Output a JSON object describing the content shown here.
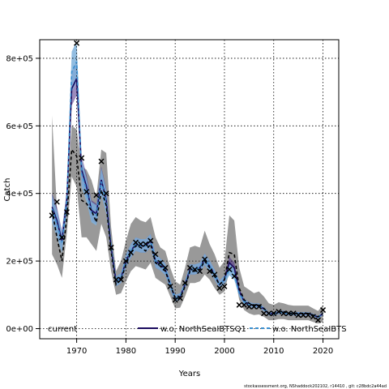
{
  "chart_data": {
    "type": "line",
    "xlabel": "Years",
    "ylabel": "Catch",
    "xlim": [
      1962.5,
      2023.2
    ],
    "ylim": [
      -30000,
      855000
    ],
    "x_ticks": [
      1970,
      1980,
      1990,
      2000,
      2010,
      2020
    ],
    "x_tick_labels": [
      "1970",
      "1980",
      "1990",
      "2000",
      "2010",
      "2020"
    ],
    "y_ticks": [
      0,
      200000,
      400000,
      600000,
      800000
    ],
    "y_tick_labels": [
      "0e+00",
      "2e+05",
      "4e+05",
      "6e+05",
      "8e+05"
    ],
    "grid": true,
    "legend_position": "bottom",
    "colors": {
      "band_current": "#999999",
      "band_btsq1": "#4b2c86",
      "band_bt": "#7fb2dc",
      "line_current": "#000000",
      "line_btsq1": "#1a0a5e",
      "line_bt": "#3a8fd0",
      "observed": "#000000"
    },
    "series": [
      {
        "name": "current",
        "style": "dashed",
        "x": [
          1965,
          1966,
          1967,
          1968,
          1969,
          1970,
          1971,
          1972,
          1973,
          1974,
          1975,
          1976,
          1977,
          1978,
          1979,
          1980,
          1981,
          1982,
          1983,
          1984,
          1985,
          1986,
          1987,
          1988,
          1989,
          1990,
          1991,
          1992,
          1993,
          1994,
          1995,
          1996,
          1997,
          1998,
          1999,
          2000,
          2001,
          2002,
          2003,
          2004,
          2005,
          2006,
          2007,
          2008,
          2009,
          2010,
          2011,
          2012,
          2013,
          2014,
          2015,
          2016,
          2017,
          2018,
          2019,
          2020
        ],
        "values": [
          350000,
          270000,
          200000,
          330000,
          530000,
          510000,
          380000,
          370000,
          350000,
          315000,
          410000,
          365000,
          230000,
          130000,
          145000,
          190000,
          225000,
          245000,
          240000,
          230000,
          250000,
          195000,
          185000,
          170000,
          130000,
          90000,
          90000,
          125000,
          170000,
          170000,
          175000,
          200000,
          180000,
          155000,
          130000,
          145000,
          225000,
          220000,
          120000,
          85000,
          75000,
          70000,
          70000,
          60000,
          45000,
          45000,
          50000,
          50000,
          45000,
          45000,
          45000,
          45000,
          45000,
          40000,
          35000,
          45000
        ],
        "lower": [
          220000,
          190000,
          150000,
          280000,
          450000,
          420000,
          270000,
          270000,
          250000,
          230000,
          310000,
          270000,
          170000,
          100000,
          105000,
          140000,
          170000,
          185000,
          180000,
          175000,
          195000,
          150000,
          140000,
          130000,
          95000,
          60000,
          62000,
          95000,
          135000,
          135000,
          140000,
          160000,
          145000,
          120000,
          100000,
          110000,
          170000,
          165000,
          85000,
          55000,
          45000,
          40000,
          42000,
          35000,
          25000,
          25000,
          28000,
          28000,
          25000,
          25000,
          25000,
          25000,
          25000,
          20000,
          15000,
          20000
        ],
        "upper": [
          630000,
          350000,
          260000,
          400000,
          600000,
          590000,
          480000,
          470000,
          440000,
          390000,
          530000,
          520000,
          300000,
          170000,
          200000,
          260000,
          310000,
          330000,
          320000,
          315000,
          330000,
          270000,
          240000,
          230000,
          180000,
          140000,
          130000,
          180000,
          240000,
          245000,
          240000,
          290000,
          250000,
          220000,
          180000,
          200000,
          335000,
          320000,
          180000,
          125000,
          115000,
          105000,
          110000,
          95000,
          75000,
          70000,
          78000,
          75000,
          70000,
          68000,
          68000,
          68000,
          68000,
          60000,
          52000,
          70000
        ]
      },
      {
        "name": "w.o. NorthSeaIBTSQ1",
        "style": "solid",
        "x": [
          1965,
          1966,
          1967,
          1968,
          1969,
          1970,
          1971,
          1972,
          1973,
          1974,
          1975,
          1976,
          1977,
          1978,
          1979,
          1980,
          1981,
          1982,
          1983,
          1984,
          1985,
          1986,
          1987,
          1988,
          1989,
          1990,
          1991,
          1992,
          1993,
          1994,
          1995,
          1996,
          1997,
          1998,
          1999,
          2000,
          2001,
          2002,
          2003,
          2004,
          2005,
          2006,
          2007,
          2008,
          2009,
          2010,
          2011,
          2012,
          2013,
          2014,
          2015,
          2016,
          2017,
          2018,
          2019,
          2020
        ],
        "values": [
          360000,
          320000,
          260000,
          380000,
          710000,
          740000,
          470000,
          420000,
          350000,
          340000,
          440000,
          380000,
          240000,
          140000,
          150000,
          200000,
          230000,
          250000,
          245000,
          245000,
          260000,
          200000,
          190000,
          175000,
          130000,
          90000,
          95000,
          130000,
          175000,
          175000,
          180000,
          205000,
          185000,
          160000,
          130000,
          145000,
          195000,
          180000,
          110000,
          80000,
          72000,
          68000,
          68000,
          58000,
          44000,
          44000,
          48000,
          48000,
          44000,
          44000,
          44000,
          44000,
          44000,
          40000,
          34000,
          44000
        ],
        "lower": [
          320000,
          280000,
          230000,
          350000,
          660000,
          690000,
          430000,
          385000,
          320000,
          310000,
          400000,
          345000,
          215000,
          125000,
          135000,
          180000,
          210000,
          230000,
          225000,
          225000,
          240000,
          180000,
          172000,
          158000,
          115000,
          80000,
          85000,
          118000,
          160000,
          160000,
          165000,
          188000,
          168000,
          145000,
          118000,
          132000,
          178000,
          164000,
          100000,
          72000,
          65000,
          61000,
          61000,
          52000,
          39000,
          39000,
          43000,
          43000,
          39000,
          39000,
          39000,
          39000,
          39000,
          36000,
          30000,
          39000
        ],
        "upper": [
          400000,
          360000,
          290000,
          410000,
          760000,
          790000,
          510000,
          455000,
          380000,
          370000,
          480000,
          415000,
          265000,
          155000,
          165000,
          220000,
          250000,
          270000,
          265000,
          265000,
          280000,
          220000,
          208000,
          192000,
          145000,
          100000,
          105000,
          142000,
          190000,
          190000,
          195000,
          222000,
          202000,
          175000,
          142000,
          158000,
          212000,
          196000,
          120000,
          88000,
          79000,
          75000,
          75000,
          64000,
          49000,
          49000,
          53000,
          53000,
          49000,
          49000,
          49000,
          49000,
          49000,
          44000,
          38000,
          49000
        ]
      },
      {
        "name": "w.o. NorthSeaIBTS",
        "style": "dashed",
        "x": [
          1965,
          1966,
          1967,
          1968,
          1969,
          1970,
          1971,
          1972,
          1973,
          1974,
          1975,
          1976,
          1977,
          1978,
          1979,
          1980,
          1981,
          1982,
          1983,
          1984,
          1985,
          1986,
          1987,
          1988,
          1989,
          1990,
          1991,
          1992,
          1993,
          1994,
          1995,
          1996,
          1997,
          1998,
          1999,
          2000,
          2001,
          2002,
          2003,
          2004,
          2005,
          2006,
          2007,
          2008,
          2009,
          2010,
          2011,
          2012,
          2013,
          2014,
          2015,
          2016,
          2017,
          2018,
          2019,
          2020
        ],
        "values": [
          355000,
          310000,
          255000,
          375000,
          760000,
          790000,
          460000,
          410000,
          345000,
          335000,
          435000,
          375000,
          240000,
          140000,
          150000,
          200000,
          230000,
          250000,
          245000,
          245000,
          260000,
          200000,
          190000,
          175000,
          130000,
          90000,
          95000,
          130000,
          175000,
          175000,
          180000,
          205000,
          185000,
          160000,
          130000,
          145000,
          175000,
          160000,
          105000,
          80000,
          72000,
          68000,
          68000,
          58000,
          44000,
          44000,
          48000,
          48000,
          44000,
          44000,
          44000,
          44000,
          44000,
          40000,
          34000,
          44000
        ],
        "lower": [
          315000,
          270000,
          225000,
          345000,
          700000,
          730000,
          420000,
          375000,
          315000,
          305000,
          395000,
          340000,
          215000,
          125000,
          135000,
          180000,
          210000,
          230000,
          225000,
          225000,
          240000,
          180000,
          172000,
          158000,
          115000,
          80000,
          85000,
          118000,
          160000,
          160000,
          165000,
          188000,
          168000,
          145000,
          118000,
          132000,
          158000,
          144000,
          95000,
          72000,
          65000,
          61000,
          61000,
          52000,
          39000,
          39000,
          43000,
          43000,
          39000,
          39000,
          39000,
          39000,
          39000,
          36000,
          30000,
          39000
        ],
        "upper": [
          395000,
          350000,
          285000,
          405000,
          820000,
          850000,
          500000,
          445000,
          375000,
          365000,
          475000,
          410000,
          265000,
          155000,
          165000,
          220000,
          250000,
          270000,
          265000,
          265000,
          280000,
          220000,
          208000,
          192000,
          145000,
          100000,
          105000,
          142000,
          190000,
          190000,
          195000,
          222000,
          202000,
          175000,
          142000,
          158000,
          192000,
          176000,
          115000,
          88000,
          79000,
          75000,
          75000,
          64000,
          49000,
          49000,
          53000,
          53000,
          49000,
          49000,
          49000,
          49000,
          49000,
          44000,
          38000,
          49000
        ]
      }
    ],
    "observed": {
      "marker": "x",
      "x": [
        1965,
        1966,
        1967,
        1968,
        1970,
        1971,
        1972,
        1974,
        1975,
        1976,
        1977,
        1978,
        1979,
        1980,
        1981,
        1982,
        1983,
        1984,
        1985,
        1986,
        1987,
        1988,
        1989,
        1990,
        1991,
        1992,
        1993,
        1994,
        1995,
        1996,
        1997,
        1998,
        1999,
        2000,
        2001,
        2002,
        2003,
        2004,
        2005,
        2006,
        2007,
        2008,
        2009,
        2010,
        2011,
        2012,
        2013,
        2014,
        2015,
        2016,
        2017,
        2018,
        2019,
        2020
      ],
      "values": [
        335000,
        375000,
        270000,
        345000,
        845000,
        505000,
        405000,
        395000,
        495000,
        400000,
        240000,
        145000,
        145000,
        200000,
        225000,
        255000,
        250000,
        250000,
        260000,
        220000,
        195000,
        180000,
        125000,
        85000,
        90000,
        135000,
        180000,
        175000,
        170000,
        205000,
        170000,
        160000,
        120000,
        125000,
        175000,
        155000,
        70000,
        70000,
        65000,
        65000,
        65000,
        45000,
        45000,
        45000,
        50000,
        45000,
        45000,
        45000,
        40000,
        40000,
        40000,
        35000,
        25000,
        55000
      ]
    }
  },
  "footer_text": "stockassessment.org, NShaddock202102, r14410 ,  git: c28bdc2a44ad"
}
